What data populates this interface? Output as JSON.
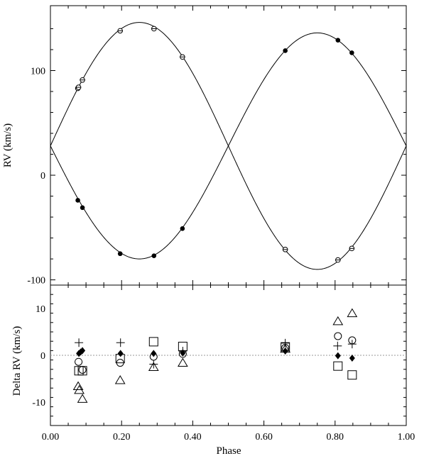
{
  "chart_data": [
    {
      "type": "scatter",
      "ylabel": "RV (km/s)",
      "xlim": [
        0,
        1
      ],
      "ylim": [
        -105,
        162
      ],
      "y_ticks": [
        {
          "value": 100,
          "label": "100"
        },
        {
          "value": 0,
          "label": "0"
        },
        {
          "value": -100,
          "label": "-100"
        }
      ],
      "model_curves": {
        "gamma": 28,
        "primary_amplitude": 108,
        "secondary_amplitude": 118
      },
      "series": [
        {
          "marker": "open-circle-with-bar",
          "points": [
            {
              "x": 0.077,
              "y": 83
            },
            {
              "x": 0.079,
              "y": 84
            },
            {
              "x": 0.09,
              "y": 91
            },
            {
              "x": 0.196,
              "y": 138
            },
            {
              "x": 0.291,
              "y": 140
            },
            {
              "x": 0.371,
              "y": 113
            },
            {
              "x": 0.66,
              "y": -71
            },
            {
              "x": 0.808,
              "y": -81
            },
            {
              "x": 0.847,
              "y": -70
            }
          ]
        },
        {
          "marker": "filled-circle",
          "points": [
            {
              "x": 0.077,
              "y": -24
            },
            {
              "x": 0.09,
              "y": -31
            },
            {
              "x": 0.196,
              "y": -75
            },
            {
              "x": 0.291,
              "y": -77
            },
            {
              "x": 0.371,
              "y": -51
            },
            {
              "x": 0.66,
              "y": 119
            },
            {
              "x": 0.808,
              "y": 129
            },
            {
              "x": 0.847,
              "y": 117
            }
          ]
        }
      ]
    },
    {
      "type": "scatter",
      "xlabel": "Phase",
      "ylabel": "Delta RV (km/s)",
      "xlim": [
        0,
        1
      ],
      "ylim": [
        -15,
        15
      ],
      "zero_line": true,
      "x_ticks": [
        {
          "value": 0,
          "label": "0.00"
        },
        {
          "value": 0.2,
          "label": "0.20"
        },
        {
          "value": 0.4,
          "label": "0.40"
        },
        {
          "value": 0.6,
          "label": "0.60"
        },
        {
          "value": 0.8,
          "label": "0.80"
        },
        {
          "value": 1,
          "label": "1.00"
        }
      ],
      "y_ticks": [
        {
          "value": 10,
          "label": "10"
        },
        {
          "value": 0,
          "label": "0"
        },
        {
          "value": -10,
          "label": "-10"
        }
      ],
      "series": [
        {
          "marker": "plus",
          "points": [
            {
              "x": 0.08,
              "y": 2.7
            },
            {
              "x": 0.197,
              "y": 2.7
            },
            {
              "x": 0.29,
              "y": -1.9
            },
            {
              "x": 0.372,
              "y": 0.9
            },
            {
              "x": 0.66,
              "y": 2.6
            },
            {
              "x": 0.807,
              "y": 2.0
            },
            {
              "x": 0.848,
              "y": 2.4
            }
          ]
        },
        {
          "marker": "open-circle",
          "points": [
            {
              "x": 0.079,
              "y": -1.4
            },
            {
              "x": 0.09,
              "y": -3.1
            },
            {
              "x": 0.196,
              "y": -1.6
            },
            {
              "x": 0.29,
              "y": -0.3
            },
            {
              "x": 0.372,
              "y": 0.3
            },
            {
              "x": 0.66,
              "y": 1.6
            },
            {
              "x": 0.808,
              "y": 4.1
            },
            {
              "x": 0.848,
              "y": 3.2
            }
          ]
        },
        {
          "marker": "open-square",
          "points": [
            {
              "x": 0.08,
              "y": -3.3
            },
            {
              "x": 0.09,
              "y": -3.3
            },
            {
              "x": 0.196,
              "y": -0.7
            },
            {
              "x": 0.29,
              "y": 2.9
            },
            {
              "x": 0.372,
              "y": 1.9
            },
            {
              "x": 0.66,
              "y": 1.8
            },
            {
              "x": 0.808,
              "y": -2.3
            },
            {
              "x": 0.848,
              "y": -4.2
            }
          ]
        },
        {
          "marker": "open-triangle",
          "points": [
            {
              "x": 0.078,
              "y": -6.6
            },
            {
              "x": 0.081,
              "y": -7.4
            },
            {
              "x": 0.09,
              "y": -9.3
            },
            {
              "x": 0.196,
              "y": -5.3
            },
            {
              "x": 0.29,
              "y": -2.5
            },
            {
              "x": 0.372,
              "y": -1.6
            },
            {
              "x": 0.66,
              "y": 1.4
            },
            {
              "x": 0.808,
              "y": 7.3
            },
            {
              "x": 0.848,
              "y": 9.0
            }
          ]
        },
        {
          "marker": "filled-diamond",
          "points": [
            {
              "x": 0.08,
              "y": 0.4
            },
            {
              "x": 0.085,
              "y": 0.7
            },
            {
              "x": 0.09,
              "y": 1.0
            },
            {
              "x": 0.197,
              "y": 0.4
            },
            {
              "x": 0.29,
              "y": 0.4
            },
            {
              "x": 0.372,
              "y": 0.5
            },
            {
              "x": 0.66,
              "y": 0.9
            },
            {
              "x": 0.808,
              "y": -0.1
            },
            {
              "x": 0.848,
              "y": -0.6
            }
          ]
        }
      ]
    }
  ]
}
